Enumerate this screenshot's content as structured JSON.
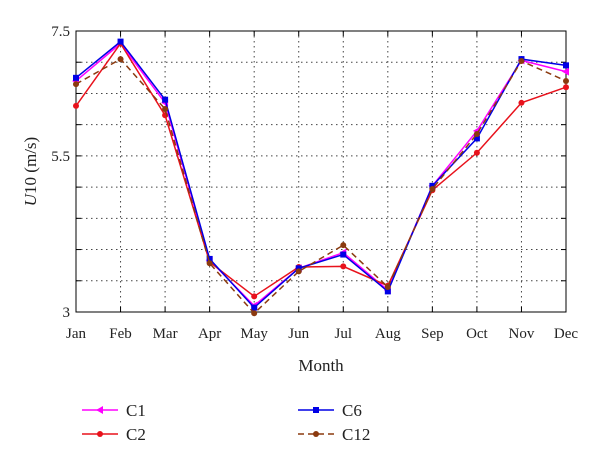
{
  "chart_data": {
    "type": "line",
    "title": "",
    "xlabel": "Month",
    "ylabel_italic": "U",
    "ylabel_rest": "10 (m/s)",
    "categories": [
      "Jan",
      "Feb",
      "Mar",
      "Apr",
      "May",
      "Jun",
      "Jul",
      "Aug",
      "Sep",
      "Oct",
      "Nov",
      "Dec"
    ],
    "ylim": [
      3,
      7.5
    ],
    "yticks": [
      3,
      5.5,
      7.5
    ],
    "yticks_labels": [
      "3",
      "5.5",
      "7.5"
    ],
    "grid": true,
    "legend_placement": "bottom",
    "series": [
      {
        "name": "C1",
        "color": "#ff00ff",
        "marker": "left-triangle",
        "dash": "solid",
        "values": [
          6.7,
          7.3,
          6.35,
          3.83,
          3.1,
          3.7,
          3.95,
          3.35,
          5.02,
          5.9,
          7.03,
          6.85
        ]
      },
      {
        "name": "C2",
        "color": "#e8121c",
        "marker": "circle",
        "dash": "solid",
        "values": [
          6.3,
          7.3,
          6.15,
          3.8,
          3.25,
          3.72,
          3.73,
          3.42,
          4.95,
          5.55,
          6.35,
          6.6
        ]
      },
      {
        "name": "C6",
        "color": "#0000e6",
        "marker": "square",
        "dash": "solid",
        "values": [
          6.75,
          7.33,
          6.4,
          3.85,
          3.07,
          3.7,
          3.92,
          3.33,
          5.02,
          5.78,
          7.05,
          6.95
        ]
      },
      {
        "name": "C12",
        "color": "#8b3a0f",
        "marker": "circle",
        "dash": "dashed",
        "values": [
          6.65,
          7.05,
          6.25,
          3.78,
          2.98,
          3.65,
          4.07,
          3.4,
          4.97,
          5.85,
          7.02,
          6.7
        ]
      }
    ]
  }
}
